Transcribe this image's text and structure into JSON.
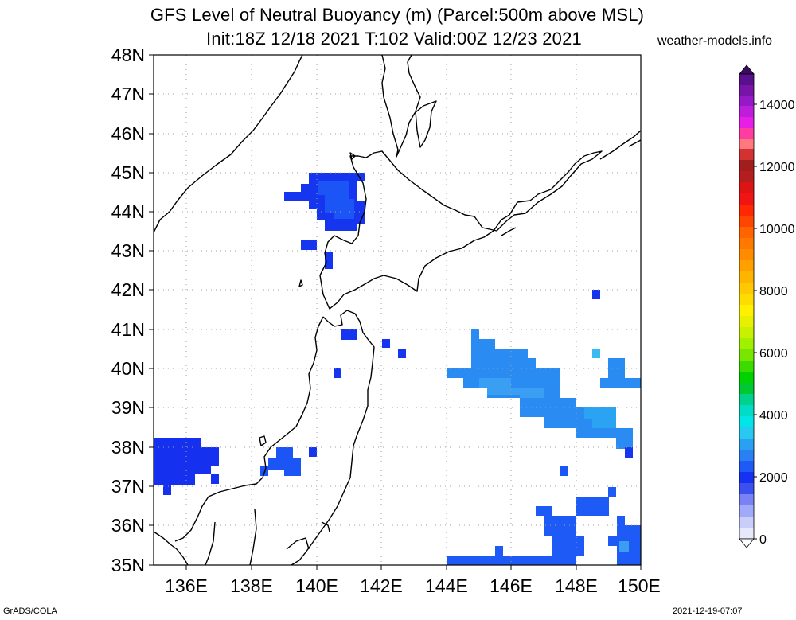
{
  "header": {
    "title_line1": "GFS Level of Neutral Buoyancy (m) (Parcel:500m above MSL)",
    "title_line2": "Init:18Z 12/18 2021 T:102 Valid:00Z 12/23 2021",
    "site": "weather-models.info"
  },
  "footer": {
    "left": "GrADS/COLA",
    "right": "2021-12-19-07:07"
  },
  "map": {
    "lat_labels": [
      "48N",
      "47N",
      "46N",
      "45N",
      "44N",
      "43N",
      "42N",
      "41N",
      "40N",
      "39N",
      "38N",
      "37N",
      "36N",
      "35N"
    ],
    "lon_labels": [
      "136E",
      "138E",
      "140E",
      "142E",
      "144E",
      "146E",
      "148E",
      "150E"
    ],
    "extent": {
      "lon": [
        135,
        150
      ],
      "lat": [
        35,
        48
      ]
    },
    "grid": "dotted",
    "colors": {
      "coast": "#000000",
      "grid": "#a0a0a0",
      "blue_dark": "#1432f0",
      "blue_mid": "#1e5af5",
      "blue_light": "#2a8cf2"
    }
  },
  "colorbar": {
    "labels": [
      "14000",
      "12000",
      "10000",
      "8000",
      "6000",
      "4000",
      "2000",
      "0"
    ],
    "range": [
      0,
      15000
    ]
  }
}
